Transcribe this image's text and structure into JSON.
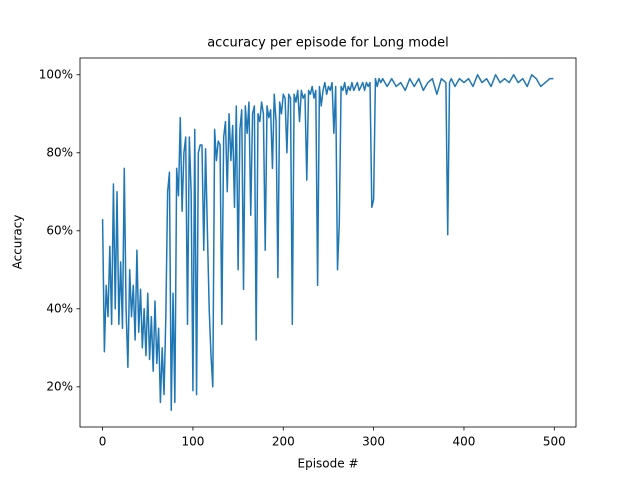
{
  "chart_data": {
    "type": "line",
    "title": "accuracy per episode for Long model",
    "x_label": "Episode #",
    "y_label": "Accuracy",
    "x": [
      0,
      2,
      4,
      6,
      8,
      10,
      12,
      14,
      16,
      18,
      20,
      22,
      24,
      26,
      28,
      30,
      32,
      34,
      36,
      38,
      40,
      42,
      44,
      46,
      48,
      50,
      52,
      54,
      56,
      58,
      60,
      62,
      64,
      66,
      68,
      70,
      72,
      74,
      76,
      78,
      80,
      82,
      84,
      86,
      88,
      90,
      92,
      94,
      96,
      98,
      100,
      102,
      104,
      106,
      108,
      110,
      112,
      114,
      116,
      118,
      120,
      122,
      124,
      126,
      128,
      130,
      132,
      134,
      136,
      138,
      140,
      142,
      144,
      146,
      148,
      150,
      152,
      154,
      156,
      158,
      160,
      162,
      164,
      166,
      168,
      170,
      172,
      174,
      176,
      178,
      180,
      182,
      184,
      186,
      188,
      190,
      192,
      194,
      196,
      198,
      200,
      202,
      204,
      206,
      208,
      210,
      212,
      214,
      216,
      218,
      220,
      222,
      224,
      226,
      228,
      230,
      232,
      234,
      236,
      238,
      240,
      242,
      244,
      246,
      248,
      250,
      252,
      254,
      256,
      258,
      260,
      262,
      264,
      266,
      268,
      270,
      272,
      274,
      276,
      278,
      280,
      282,
      284,
      286,
      288,
      290,
      292,
      294,
      296,
      298,
      300,
      302,
      304,
      306,
      308,
      310,
      315,
      320,
      325,
      330,
      335,
      340,
      345,
      350,
      355,
      360,
      365,
      370,
      375,
      380,
      382,
      384,
      386,
      390,
      395,
      400,
      405,
      410,
      415,
      420,
      425,
      430,
      435,
      440,
      445,
      450,
      455,
      460,
      465,
      470,
      475,
      480,
      485,
      490,
      495,
      499
    ],
    "series": [
      {
        "name": "Accuracy",
        "color": "#1f77b4",
        "values": [
          63,
          29,
          46,
          38,
          56,
          36,
          72,
          40,
          70,
          36,
          52,
          35,
          76,
          40,
          25,
          50,
          38,
          46,
          32,
          55,
          34,
          45,
          30,
          40,
          28,
          44,
          27,
          38,
          24,
          42,
          26,
          35,
          16,
          30,
          18,
          38,
          70,
          75,
          14,
          44,
          16,
          76,
          69,
          89,
          65,
          80,
          84,
          36,
          84,
          70,
          19,
          86,
          18,
          80,
          82,
          82,
          55,
          81,
          60,
          40,
          28,
          20,
          86,
          78,
          83,
          82,
          36,
          84,
          88,
          70,
          90,
          78,
          87,
          66,
          92,
          50,
          86,
          91,
          45,
          92,
          85,
          93,
          64,
          90,
          92,
          32,
          90,
          88,
          93,
          90,
          55,
          92,
          89,
          91,
          76,
          95,
          88,
          48,
          93,
          90,
          95,
          94,
          80,
          95,
          94,
          36,
          95,
          93,
          96,
          88,
          96,
          94,
          95,
          73,
          96,
          95,
          97,
          94,
          96,
          46,
          97,
          92,
          96,
          98,
          95,
          97,
          96,
          98,
          85,
          97,
          50,
          62,
          97,
          96,
          98,
          95,
          97,
          96,
          98,
          96,
          97,
          98,
          96,
          97,
          98,
          96,
          98,
          97,
          98,
          66,
          68,
          99,
          97,
          99,
          98,
          99,
          97,
          99,
          97,
          98,
          96,
          99,
          97,
          99,
          96,
          98,
          99,
          95,
          99,
          98,
          59,
          98,
          99,
          97,
          99,
          98,
          99,
          97,
          100,
          98,
          99,
          97,
          100,
          98,
          99,
          98,
          100,
          98,
          99,
          97,
          100,
          99,
          97,
          98,
          99,
          99
        ]
      }
    ],
    "xlim": [
      -25,
      524
    ],
    "xticks": [
      0,
      100,
      200,
      300,
      400,
      500
    ],
    "ylim": [
      9.7,
      104.3
    ],
    "yticks": [
      {
        "value": 20,
        "label": "20%"
      },
      {
        "value": 40,
        "label": "40%"
      },
      {
        "value": 60,
        "label": "60%"
      },
      {
        "value": 80,
        "label": "80%"
      },
      {
        "value": 100,
        "label": "100%"
      }
    ],
    "grid": false
  }
}
